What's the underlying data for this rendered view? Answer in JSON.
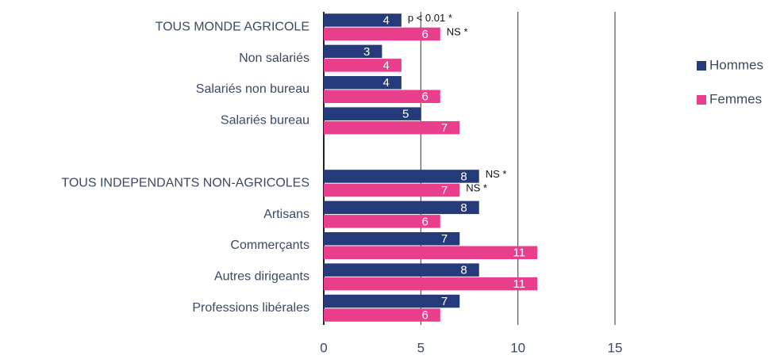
{
  "chart_data": {
    "type": "bar",
    "orientation": "horizontal",
    "categories": [
      "TOUS MONDE AGRICOLE",
      "Non salariés",
      "Salariés non bureau",
      "Salariés bureau",
      null,
      "TOUS INDEPENDANTS NON-AGRICOLES",
      "Artisans",
      "Commerçants",
      "Autres dirigeants",
      "Professions libérales"
    ],
    "series": [
      {
        "name": "Hommes",
        "color": "#253a7a",
        "values": [
          4,
          3,
          4,
          5,
          null,
          8,
          8,
          7,
          8,
          7
        ],
        "notes": [
          "p < 0.01 *",
          null,
          null,
          null,
          null,
          "NS *",
          null,
          null,
          null,
          null
        ]
      },
      {
        "name": "Femmes",
        "color": "#e83e8c",
        "values": [
          6,
          4,
          6,
          7,
          null,
          7,
          6,
          11,
          11,
          6
        ],
        "notes": [
          "NS *",
          null,
          null,
          null,
          null,
          "NS *",
          null,
          null,
          null,
          null
        ]
      }
    ],
    "xlim": [
      0,
      15
    ],
    "xticks": [
      0,
      5,
      10,
      15
    ],
    "grid": true,
    "legend": "right"
  }
}
